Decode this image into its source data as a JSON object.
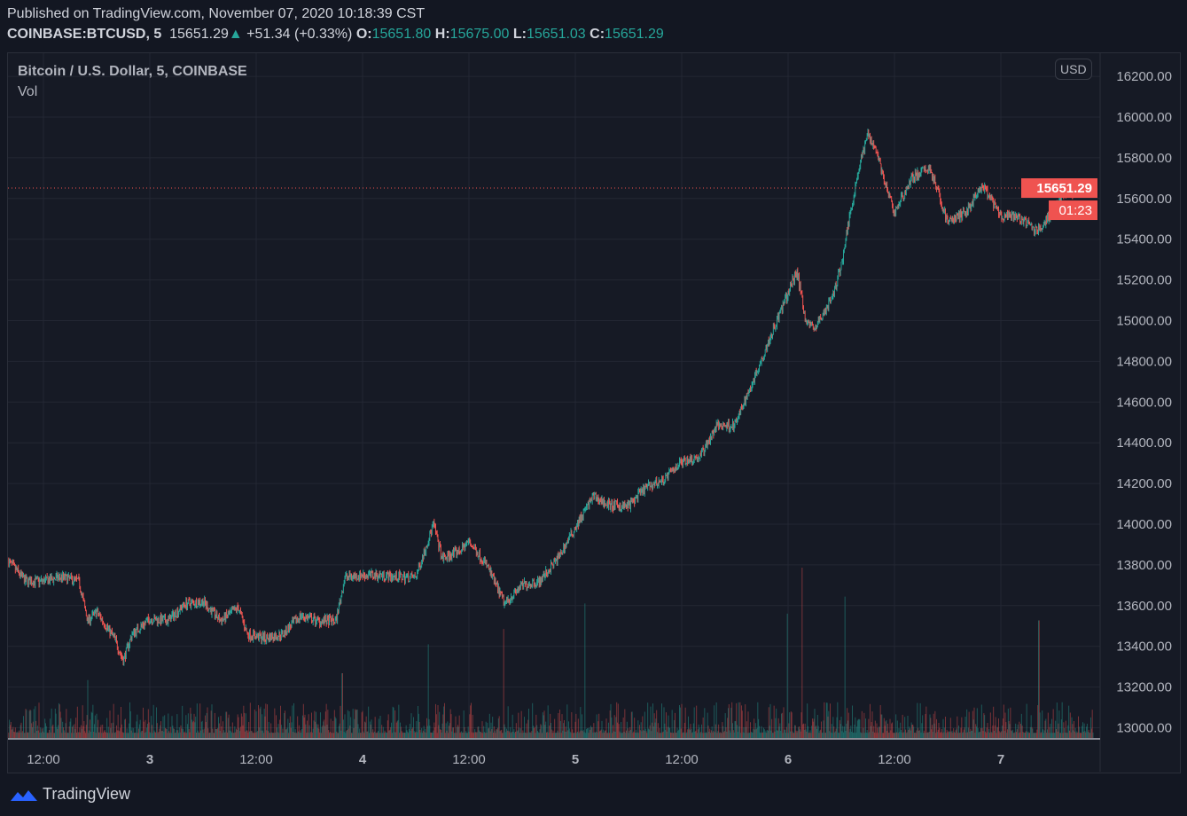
{
  "header": {
    "published": "Published on TradingView.com, November 07, 2020 10:18:39 CST",
    "symbol": "COINBASE:BTCUSD, 5",
    "last": "15651.29",
    "change": "+51.34 (+0.33%)",
    "o_label": "O:",
    "o": "15651.80",
    "h_label": "H:",
    "h": "15675.00",
    "l_label": "L:",
    "l": "15651.03",
    "c_label": "C:",
    "c": "15651.29"
  },
  "legend": {
    "title": "Bitcoin / U.S. Dollar, 5, COINBASE",
    "volume": "Vol"
  },
  "currency_button": "USD",
  "price_label": "15651.29",
  "countdown": "01:23",
  "brand": "TradingView",
  "colors": {
    "up": "#26a69a",
    "down": "#ef5350"
  },
  "chart_data": {
    "type": "candlestick",
    "title": "Bitcoin / U.S. Dollar, 5, COINBASE",
    "ylim": [
      12950,
      16220
    ],
    "y_ticks": [
      "16200.00",
      "16000.00",
      "15800.00",
      "15600.00",
      "15400.00",
      "15200.00",
      "15000.00",
      "14800.00",
      "14600.00",
      "14400.00",
      "14200.00",
      "14000.00",
      "13800.00",
      "13600.00",
      "13400.00",
      "13200.00",
      "13000.00"
    ],
    "y_tick_values": [
      16200,
      16000,
      15800,
      15600,
      15400,
      15200,
      15000,
      14800,
      14600,
      14400,
      14200,
      14000,
      13800,
      13600,
      13400,
      13200,
      13000
    ],
    "x_unit": "hours since Nov 2 00:00",
    "x_ticks": [
      {
        "h": 12,
        "label": "12:00"
      },
      {
        "h": 24,
        "label": "3"
      },
      {
        "h": 36,
        "label": "12:00"
      },
      {
        "h": 48,
        "label": "4"
      },
      {
        "h": 60,
        "label": "12:00"
      },
      {
        "h": 72,
        "label": "5"
      },
      {
        "h": 84,
        "label": "12:00"
      },
      {
        "h": 96,
        "label": "6"
      },
      {
        "h": 108,
        "label": "12:00"
      },
      {
        "h": 120,
        "label": "7"
      }
    ],
    "close_series": [
      [
        8,
        13820
      ],
      [
        10,
        13720
      ],
      [
        12,
        13720
      ],
      [
        14,
        13740
      ],
      [
        16,
        13720
      ],
      [
        17,
        13525
      ],
      [
        18,
        13570
      ],
      [
        20,
        13440
      ],
      [
        21,
        13330
      ],
      [
        22,
        13460
      ],
      [
        24,
        13535
      ],
      [
        26,
        13525
      ],
      [
        28,
        13610
      ],
      [
        30,
        13620
      ],
      [
        32,
        13525
      ],
      [
        34,
        13590
      ],
      [
        35,
        13460
      ],
      [
        37,
        13440
      ],
      [
        39,
        13460
      ],
      [
        41,
        13550
      ],
      [
        43,
        13525
      ],
      [
        45,
        13525
      ],
      [
        46,
        13740
      ],
      [
        48,
        13750
      ],
      [
        50,
        13750
      ],
      [
        52,
        13740
      ],
      [
        54,
        13740
      ],
      [
        55,
        13870
      ],
      [
        56,
        14000
      ],
      [
        57,
        13830
      ],
      [
        59,
        13870
      ],
      [
        60,
        13915
      ],
      [
        62,
        13800
      ],
      [
        64,
        13610
      ],
      [
        66,
        13700
      ],
      [
        68,
        13720
      ],
      [
        70,
        13830
      ],
      [
        72,
        13985
      ],
      [
        74,
        14135
      ],
      [
        76,
        14090
      ],
      [
        78,
        14090
      ],
      [
        80,
        14180
      ],
      [
        82,
        14220
      ],
      [
        84,
        14310
      ],
      [
        86,
        14330
      ],
      [
        88,
        14485
      ],
      [
        90,
        14485
      ],
      [
        92,
        14700
      ],
      [
        94,
        14920
      ],
      [
        96,
        15135
      ],
      [
        97,
        15245
      ],
      [
        98,
        15000
      ],
      [
        99,
        14960
      ],
      [
        101,
        15115
      ],
      [
        102,
        15270
      ],
      [
        103,
        15530
      ],
      [
        104,
        15750
      ],
      [
        105,
        15920
      ],
      [
        106,
        15835
      ],
      [
        107,
        15660
      ],
      [
        108,
        15530
      ],
      [
        110,
        15705
      ],
      [
        112,
        15750
      ],
      [
        114,
        15485
      ],
      [
        116,
        15530
      ],
      [
        118,
        15660
      ],
      [
        120,
        15510
      ],
      [
        122,
        15510
      ],
      [
        124,
        15440
      ],
      [
        125,
        15485
      ],
      [
        127,
        15620
      ],
      [
        129,
        15640
      ],
      [
        130.4,
        15651.29
      ]
    ],
    "volume_spikes_relative": [
      [
        17,
        0.34
      ],
      [
        45.7,
        0.38
      ],
      [
        55.4,
        0.55
      ],
      [
        63.9,
        0.64
      ],
      [
        73.1,
        0.79
      ],
      [
        95.9,
        0.73
      ],
      [
        97.6,
        1.0
      ],
      [
        102.4,
        0.83
      ],
      [
        124.3,
        0.69
      ]
    ],
    "last_price": 15651.29
  }
}
